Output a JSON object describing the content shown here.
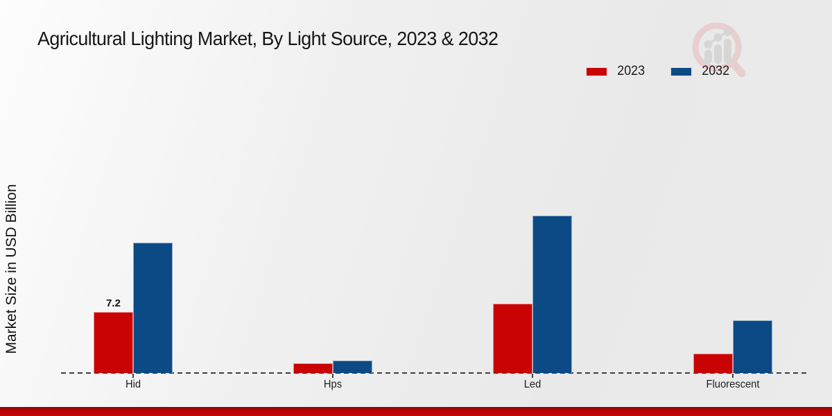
{
  "title": "Agricultural Lighting Market, By Light Source, 2023 & 2032",
  "ylabel": "Market Size in USD Billion",
  "legend": [
    {
      "label": "2023",
      "color": "#c90303"
    },
    {
      "label": "2032",
      "color": "#0c4a86"
    }
  ],
  "watermark_icon": "magnifier-bar-chart-logo",
  "chart_data": {
    "type": "bar",
    "title": "Agricultural Lighting Market, By Light Source, 2023 & 2032",
    "xlabel": "",
    "ylabel": "Market Size in USD Billion",
    "categories": [
      "Hid",
      "Hps",
      "Led",
      "Fluorescent"
    ],
    "series": [
      {
        "name": "2023",
        "color": "#c90303",
        "values": [
          7.2,
          1.1,
          8.1,
          2.3
        ]
      },
      {
        "name": "2032",
        "color": "#0c4a86",
        "values": [
          15.3,
          1.5,
          18.5,
          6.2
        ]
      }
    ],
    "point_labels": [
      {
        "series": "2023",
        "category": "Hid",
        "text": "7.2"
      }
    ],
    "ylim": [
      0,
      20
    ],
    "grid": false,
    "baseline_style": "dashed",
    "legend_position": "top-right"
  }
}
